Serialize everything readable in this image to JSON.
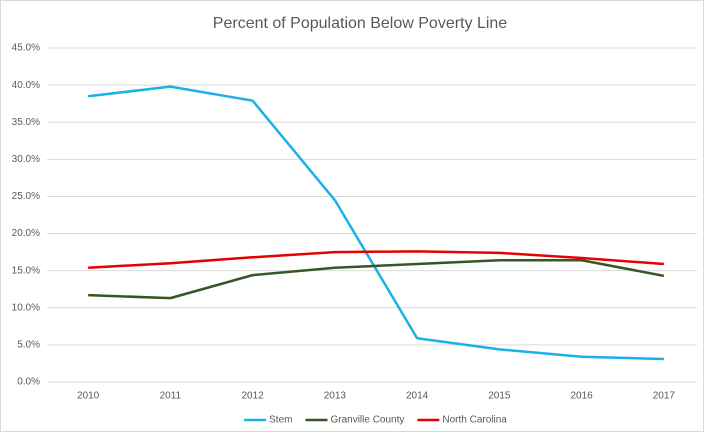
{
  "chart_data": {
    "type": "line",
    "title": "Percent of Population Below Poverty Line",
    "categories": [
      "2010",
      "2011",
      "2012",
      "2013",
      "2014",
      "2015",
      "2016",
      "2017"
    ],
    "series": [
      {
        "name": "Stem",
        "color": "#1ab0e8",
        "values": [
          38.5,
          39.8,
          37.9,
          24.5,
          5.9,
          4.4,
          3.4,
          3.1
        ]
      },
      {
        "name": "Granville County",
        "color": "#375623",
        "values": [
          11.7,
          11.3,
          14.4,
          15.4,
          15.9,
          16.4,
          16.4,
          14.3
        ]
      },
      {
        "name": "North Carolina",
        "color": "#e60000",
        "values": [
          15.4,
          16.0,
          16.8,
          17.5,
          17.6,
          17.4,
          16.7,
          15.9
        ]
      }
    ],
    "ylim": [
      0,
      45
    ],
    "yticks": [
      {
        "value": 0,
        "label": "0.0%"
      },
      {
        "value": 5,
        "label": "5.0%"
      },
      {
        "value": 10,
        "label": "10.0%"
      },
      {
        "value": 15,
        "label": "15.0%"
      },
      {
        "value": 20,
        "label": "20.0%"
      },
      {
        "value": 25,
        "label": "25.0%"
      },
      {
        "value": 30,
        "label": "30.0%"
      },
      {
        "value": 35,
        "label": "35.0%"
      },
      {
        "value": 40,
        "label": "40.0%"
      },
      {
        "value": 45,
        "label": "45.0%"
      }
    ],
    "grid": true,
    "legend": "bottom"
  }
}
